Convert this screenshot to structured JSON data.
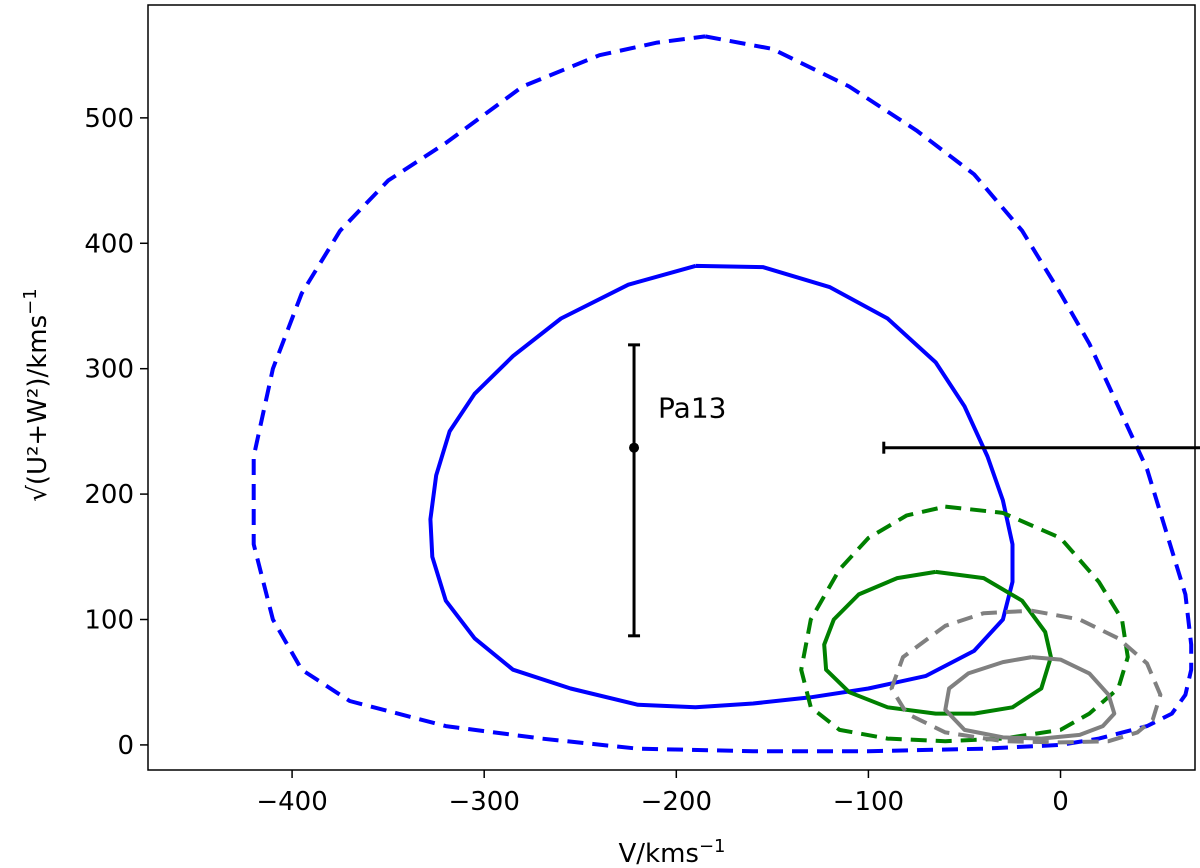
{
  "chart_data": {
    "type": "line",
    "title": "",
    "xlabel": "V/kms",
    "xlabel_sup": "−1",
    "ylabel_math": "√(U²+W²)",
    "ylabel_unit": "/kms",
    "ylabel_sup": "−1",
    "xlim": [
      -475,
      70
    ],
    "ylim": [
      -20,
      590
    ],
    "xticks": [
      -400,
      -300,
      -200,
      -100,
      0
    ],
    "xtick_labels": [
      "−400",
      "−300",
      "−200",
      "−100",
      "0"
    ],
    "yticks": [
      0,
      100,
      200,
      300,
      400,
      500
    ],
    "ytick_labels": [
      "0",
      "100",
      "200",
      "300",
      "400",
      "500"
    ],
    "grid": false,
    "series": [
      {
        "color": "#0000ff",
        "style": "dashed",
        "x": [
          -185,
          -150,
          -110,
          -75,
          -45,
          -20,
          0,
          15,
          30,
          45,
          55,
          65,
          68,
          68,
          65,
          58,
          45,
          20,
          0,
          -40,
          -100,
          -160,
          -220,
          -270,
          -320,
          -370,
          -395,
          -410,
          -420,
          -420,
          -410,
          -395,
          -375,
          -350,
          -320,
          -280,
          -240,
          -210,
          -185
        ],
        "y": [
          565,
          555,
          525,
          490,
          455,
          410,
          360,
          320,
          270,
          220,
          170,
          120,
          80,
          60,
          40,
          25,
          15,
          5,
          0,
          -3,
          -5,
          -5,
          -3,
          5,
          15,
          35,
          60,
          100,
          160,
          230,
          300,
          360,
          410,
          450,
          480,
          525,
          550,
          560,
          565
        ]
      },
      {
        "color": "#0000ff",
        "style": "solid",
        "x": [
          -190,
          -155,
          -120,
          -90,
          -65,
          -50,
          -38,
          -30,
          -25,
          -25,
          -30,
          -45,
          -70,
          -100,
          -130,
          -160,
          -190,
          -220,
          -255,
          -285,
          -305,
          -320,
          -327,
          -328,
          -325,
          -318,
          -305,
          -285,
          -260,
          -225,
          -190
        ],
        "y": [
          382,
          381,
          365,
          340,
          305,
          270,
          230,
          195,
          160,
          130,
          100,
          75,
          55,
          45,
          38,
          33,
          30,
          32,
          45,
          60,
          85,
          115,
          150,
          180,
          215,
          250,
          280,
          310,
          340,
          367,
          382
        ]
      },
      {
        "color": "#008000",
        "style": "dashed",
        "x": [
          -60,
          -30,
          0,
          20,
          32,
          35,
          30,
          15,
          0,
          -30,
          -60,
          -90,
          -115,
          -130,
          -135,
          -130,
          -115,
          -100,
          -80,
          -60
        ],
        "y": [
          190,
          185,
          165,
          130,
          100,
          70,
          45,
          25,
          12,
          5,
          3,
          5,
          12,
          30,
          60,
          100,
          140,
          165,
          183,
          190
        ]
      },
      {
        "color": "#008000",
        "style": "solid",
        "x": [
          -65,
          -40,
          -20,
          -8,
          -5,
          -10,
          -25,
          -45,
          -65,
          -90,
          -110,
          -122,
          -123,
          -118,
          -105,
          -85,
          -65
        ],
        "y": [
          138,
          133,
          115,
          90,
          70,
          45,
          30,
          25,
          25,
          30,
          42,
          60,
          80,
          100,
          120,
          133,
          138
        ]
      },
      {
        "color": "#808080",
        "style": "dashed",
        "x": [
          -15,
          10,
          30,
          45,
          52,
          48,
          40,
          25,
          0,
          -30,
          -60,
          -80,
          -88,
          -82,
          -60,
          -40,
          -15
        ],
        "y": [
          107,
          100,
          85,
          65,
          40,
          20,
          10,
          3,
          2,
          3,
          10,
          25,
          45,
          70,
          95,
          105,
          107
        ]
      },
      {
        "color": "#808080",
        "style": "solid",
        "x": [
          -15,
          0,
          15,
          25,
          28,
          22,
          10,
          -10,
          -30,
          -50,
          -60,
          -58,
          -48,
          -30,
          -15
        ],
        "y": [
          70,
          68,
          57,
          40,
          25,
          15,
          8,
          5,
          6,
          12,
          28,
          45,
          57,
          66,
          70
        ]
      }
    ],
    "points": [
      {
        "x": -222,
        "y": 237,
        "xerr_low": 295,
        "xerr_high": -92,
        "yerr_low": 87,
        "yerr_high": 319,
        "label": "Pa13",
        "color": "#000000"
      }
    ]
  }
}
